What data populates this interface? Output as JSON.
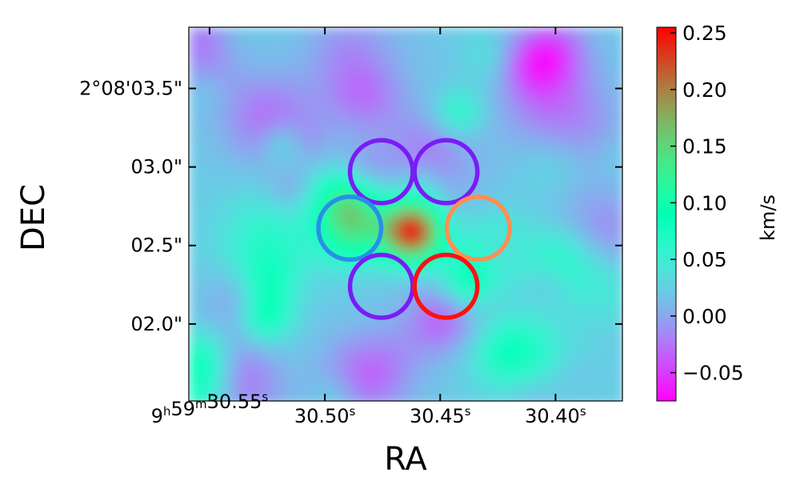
{
  "chart_data": {
    "type": "heatmap",
    "title": "",
    "xlabel": "RA",
    "ylabel": "DEC",
    "colorbar_label": "km/s",
    "colormap": "rainbow",
    "color_range": [
      -0.075,
      0.255
    ],
    "colorbar_ticks": [
      {
        "value": 0.25,
        "label": "0.25"
      },
      {
        "value": 0.2,
        "label": "0.20"
      },
      {
        "value": 0.15,
        "label": "0.15"
      },
      {
        "value": 0.1,
        "label": "0.10"
      },
      {
        "value": 0.05,
        "label": "0.05"
      },
      {
        "value": 0.0,
        "label": "0.00"
      },
      {
        "value": -0.05,
        "label": "−0.05"
      }
    ],
    "x_ticks": [
      {
        "ra_seconds": 30.55,
        "pre": "9",
        "h": "h",
        "mid": "59",
        "m": "m",
        "sec": "30.55",
        "s": "s"
      },
      {
        "ra_seconds": 30.5,
        "pre": "",
        "h": "",
        "mid": "",
        "m": "",
        "sec": "30.50",
        "s": "s"
      },
      {
        "ra_seconds": 30.45,
        "pre": "",
        "h": "",
        "mid": "",
        "m": "",
        "sec": "30.45",
        "s": "s"
      },
      {
        "ra_seconds": 30.4,
        "pre": "",
        "h": "",
        "mid": "",
        "m": "",
        "sec": "30.40",
        "s": "s"
      }
    ],
    "xlim_ra_seconds": [
      30.559,
      30.371
    ],
    "y_ticks": [
      {
        "dec_arcsec": 3.5,
        "label": "2°08'03.5\""
      },
      {
        "dec_arcsec": 3.0,
        "label": "03.0\""
      },
      {
        "dec_arcsec": 2.5,
        "label": "02.5\""
      },
      {
        "dec_arcsec": 2.0,
        "label": "02.0\""
      }
    ],
    "ylim_dec_arcsec": [
      1.51,
      3.89
    ],
    "grid": false,
    "peak": {
      "ra_seconds": 30.462,
      "dec_arcsec": 2.59,
      "value": 0.25
    },
    "apertures": [
      {
        "ra_seconds": 30.4755,
        "dec_arcsec": 2.97,
        "diameter_arcsec": 0.4,
        "color": "#7a1cf5"
      },
      {
        "ra_seconds": 30.4475,
        "dec_arcsec": 2.97,
        "diameter_arcsec": 0.4,
        "color": "#7a1cf5"
      },
      {
        "ra_seconds": 30.4892,
        "dec_arcsec": 2.61,
        "diameter_arcsec": 0.4,
        "color": "#2a8ee8"
      },
      {
        "ra_seconds": 30.4335,
        "dec_arcsec": 2.61,
        "diameter_arcsec": 0.4,
        "color": "#ff8e52"
      },
      {
        "ra_seconds": 30.4755,
        "dec_arcsec": 2.24,
        "diameter_arcsec": 0.4,
        "color": "#7a1cf5"
      },
      {
        "ra_seconds": 30.4475,
        "dec_arcsec": 2.24,
        "diameter_arcsec": 0.4,
        "color": "#ff1010"
      }
    ]
  }
}
